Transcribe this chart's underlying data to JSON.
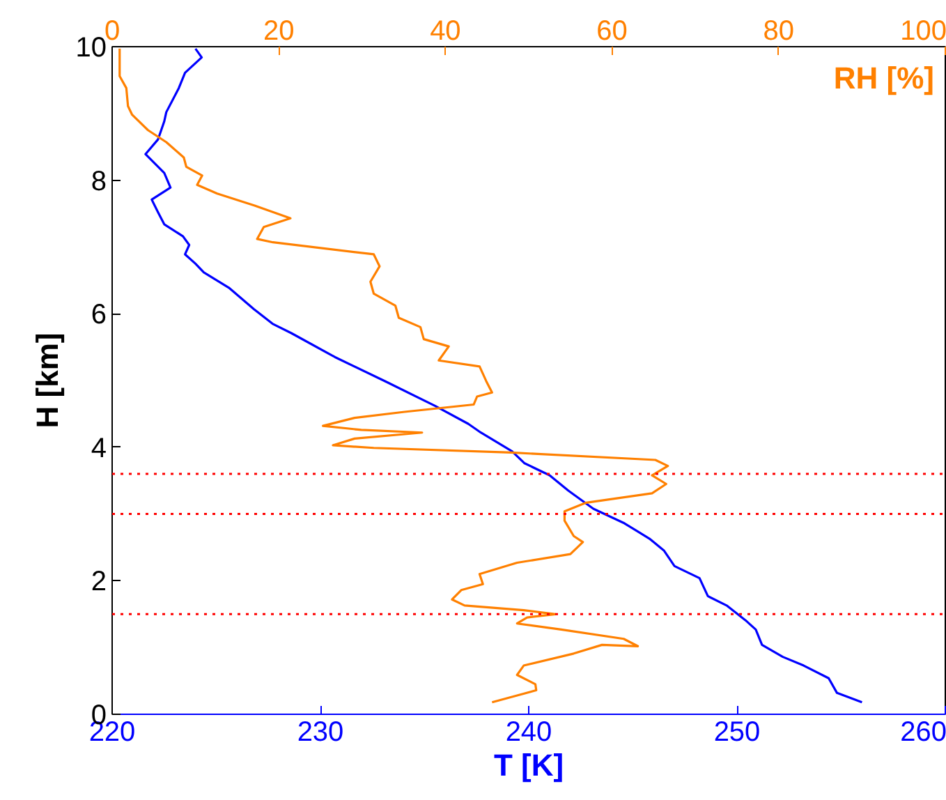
{
  "chart_data": {
    "type": "line",
    "xlabel": "T [K]",
    "ylabel": "H [km]",
    "x2label": "RH [%]",
    "xlim": [
      220,
      260
    ],
    "xticks": [
      220,
      230,
      240,
      250,
      260
    ],
    "x2lim": [
      0,
      100
    ],
    "x2ticks": [
      0,
      20,
      40,
      60,
      80,
      100
    ],
    "ylim": [
      0,
      10
    ],
    "yticks": [
      0,
      2,
      4,
      6,
      8,
      10
    ],
    "series": [
      {
        "color": "#0000ff",
        "x": [
          256.0,
          254.8,
          254.4,
          253.2,
          252.2,
          251.2,
          250.9,
          250.4,
          249.5,
          248.6,
          248.2,
          247.0,
          246.5,
          245.8,
          244.6,
          243.1,
          241.9,
          241.0,
          239.8,
          239.2,
          237.7,
          237.1,
          235.5,
          233.1,
          230.7,
          228.6,
          227.7,
          226.8,
          225.6,
          224.4,
          224.0,
          223.5,
          223.7,
          223.4,
          222.5,
          222.2,
          221.9,
          222.8,
          222.5,
          221.6,
          222.2,
          222.5,
          222.6,
          223.2,
          223.5,
          224.3,
          224.0
        ],
        "values": [
          0.18,
          0.32,
          0.54,
          0.73,
          0.86,
          1.04,
          1.27,
          1.41,
          1.63,
          1.77,
          2.04,
          2.22,
          2.45,
          2.63,
          2.86,
          3.08,
          3.35,
          3.58,
          3.76,
          3.94,
          4.22,
          4.35,
          4.62,
          4.99,
          5.35,
          5.71,
          5.85,
          6.07,
          6.39,
          6.62,
          6.75,
          6.89,
          7.03,
          7.16,
          7.34,
          7.52,
          7.71,
          7.89,
          8.11,
          8.39,
          8.61,
          8.88,
          9.02,
          9.38,
          9.61,
          9.84,
          9.97
        ]
      },
      {
        "color": "#ff8000",
        "axis": "x2",
        "x": [
          45.6,
          50.9,
          50.8,
          48.6,
          49.4,
          55.4,
          58.8,
          63.1,
          61.4,
          53.9,
          48.6,
          49.8,
          53.2,
          49.4,
          42.3,
          40.8,
          41.9,
          44.5,
          44.1,
          48.6,
          55.0,
          56.5,
          55.4,
          54.3,
          54.3,
          56.9,
          64.8,
          66.5,
          64.8,
          66.7,
          65.2,
          47.9,
          31.4,
          26.5,
          29.1,
          37.2,
          29.9,
          25.3,
          29.1,
          35.1,
          43.4,
          43.8,
          45.6,
          44.9,
          44.1,
          39.2,
          40.4,
          37.4,
          37.0,
          34.4,
          34.0,
          31.4,
          31.0,
          32.1,
          31.4,
          19.3,
          17.4,
          18.2,
          21.4,
          17.1,
          12.6,
          10.2,
          10.8,
          8.9,
          8.6,
          6.5,
          4.3,
          2.4,
          1.9,
          1.7,
          0.9,
          0.9
        ],
        "values": [
          0.18,
          0.36,
          0.45,
          0.59,
          0.73,
          0.91,
          1.04,
          1.02,
          1.13,
          1.27,
          1.36,
          1.45,
          1.5,
          1.56,
          1.63,
          1.72,
          1.86,
          1.95,
          2.1,
          2.27,
          2.4,
          2.58,
          2.67,
          2.9,
          3.04,
          3.17,
          3.31,
          3.45,
          3.58,
          3.72,
          3.81,
          3.92,
          3.99,
          4.03,
          4.13,
          4.22,
          4.26,
          4.32,
          4.44,
          4.53,
          4.64,
          4.76,
          4.82,
          4.99,
          5.21,
          5.3,
          5.51,
          5.62,
          5.8,
          5.94,
          6.12,
          6.3,
          6.48,
          6.71,
          6.89,
          7.07,
          7.12,
          7.3,
          7.43,
          7.62,
          7.8,
          7.93,
          8.07,
          8.2,
          8.34,
          8.57,
          8.75,
          8.98,
          9.11,
          9.38,
          9.56,
          9.97
        ]
      }
    ],
    "ref_lines": [
      {
        "axis": "y",
        "value": 3.6,
        "color": "#ff0000",
        "line_style": "dotted"
      },
      {
        "axis": "y",
        "value": 3.0,
        "color": "#ff0000",
        "line_style": "dotted"
      },
      {
        "axis": "y",
        "value": 1.5,
        "color": "#ff0000",
        "line_style": "dotted"
      }
    ]
  }
}
